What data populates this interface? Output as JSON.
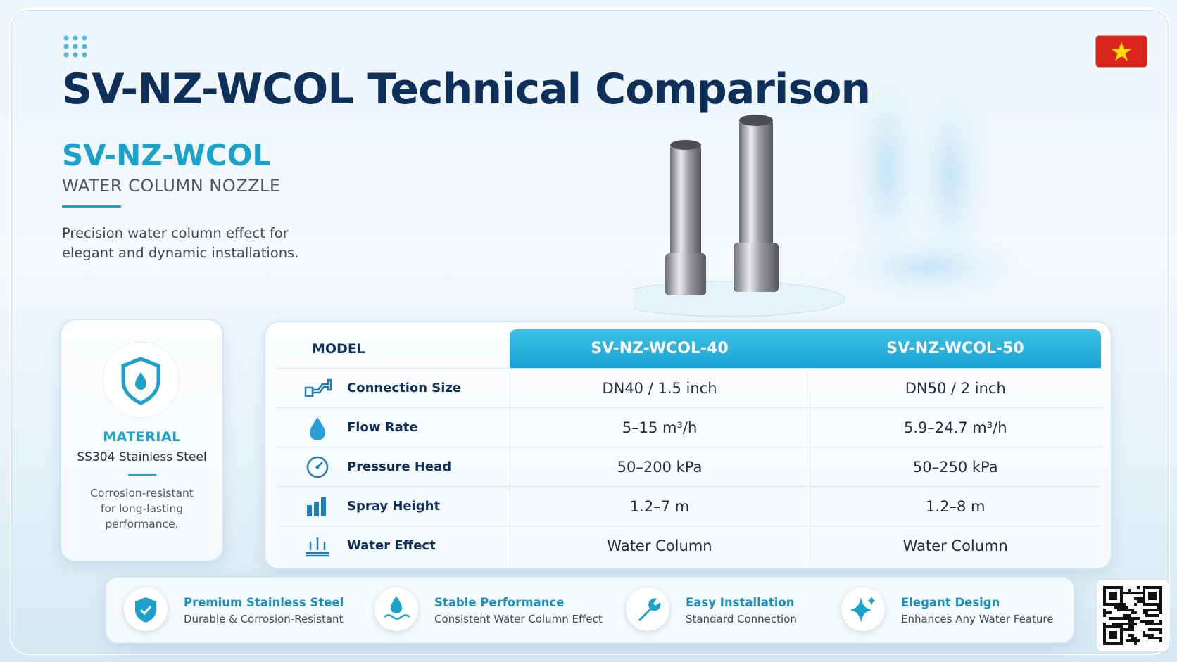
{
  "header": {
    "title": "SV-NZ-WCOL Technical Comparison",
    "product": "SV-NZ-WCOL",
    "subtitle": "WATER COLUMN NOZZLE",
    "description": "Precision water column effect for elegant and dynamic installations."
  },
  "material": {
    "label": "MATERIAL",
    "value": "SS304 Stainless Steel",
    "note": "Corrosion-resistant for long-lasting performance."
  },
  "table": {
    "header": [
      "MODEL",
      "SV-NZ-WCOL-40",
      "SV-NZ-WCOL-50"
    ],
    "rows": [
      [
        "Connection Size",
        "DN40 / 1.5 inch",
        "DN50 / 2 inch"
      ],
      [
        "Flow Rate",
        "5–15 m³/h",
        "5.9–24.7 m³/h"
      ],
      [
        "Pressure Head",
        "50–200 kPa",
        "50–250 kPa"
      ],
      [
        "Spray Height",
        "1.2–7 m",
        "1.2–8 m"
      ],
      [
        "Water Effect",
        "Water Column",
        "Water Column"
      ]
    ]
  },
  "features": [
    {
      "title": "Premium Stainless Steel",
      "text": "Durable & Corrosion-Resistant"
    },
    {
      "title": "Stable Performance",
      "text": "Consistent Water Column Effect"
    },
    {
      "title": "Easy Installation",
      "text": "Standard Connection"
    },
    {
      "title": "Elegant Design",
      "text": "Enhances Any Water Feature"
    }
  ]
}
